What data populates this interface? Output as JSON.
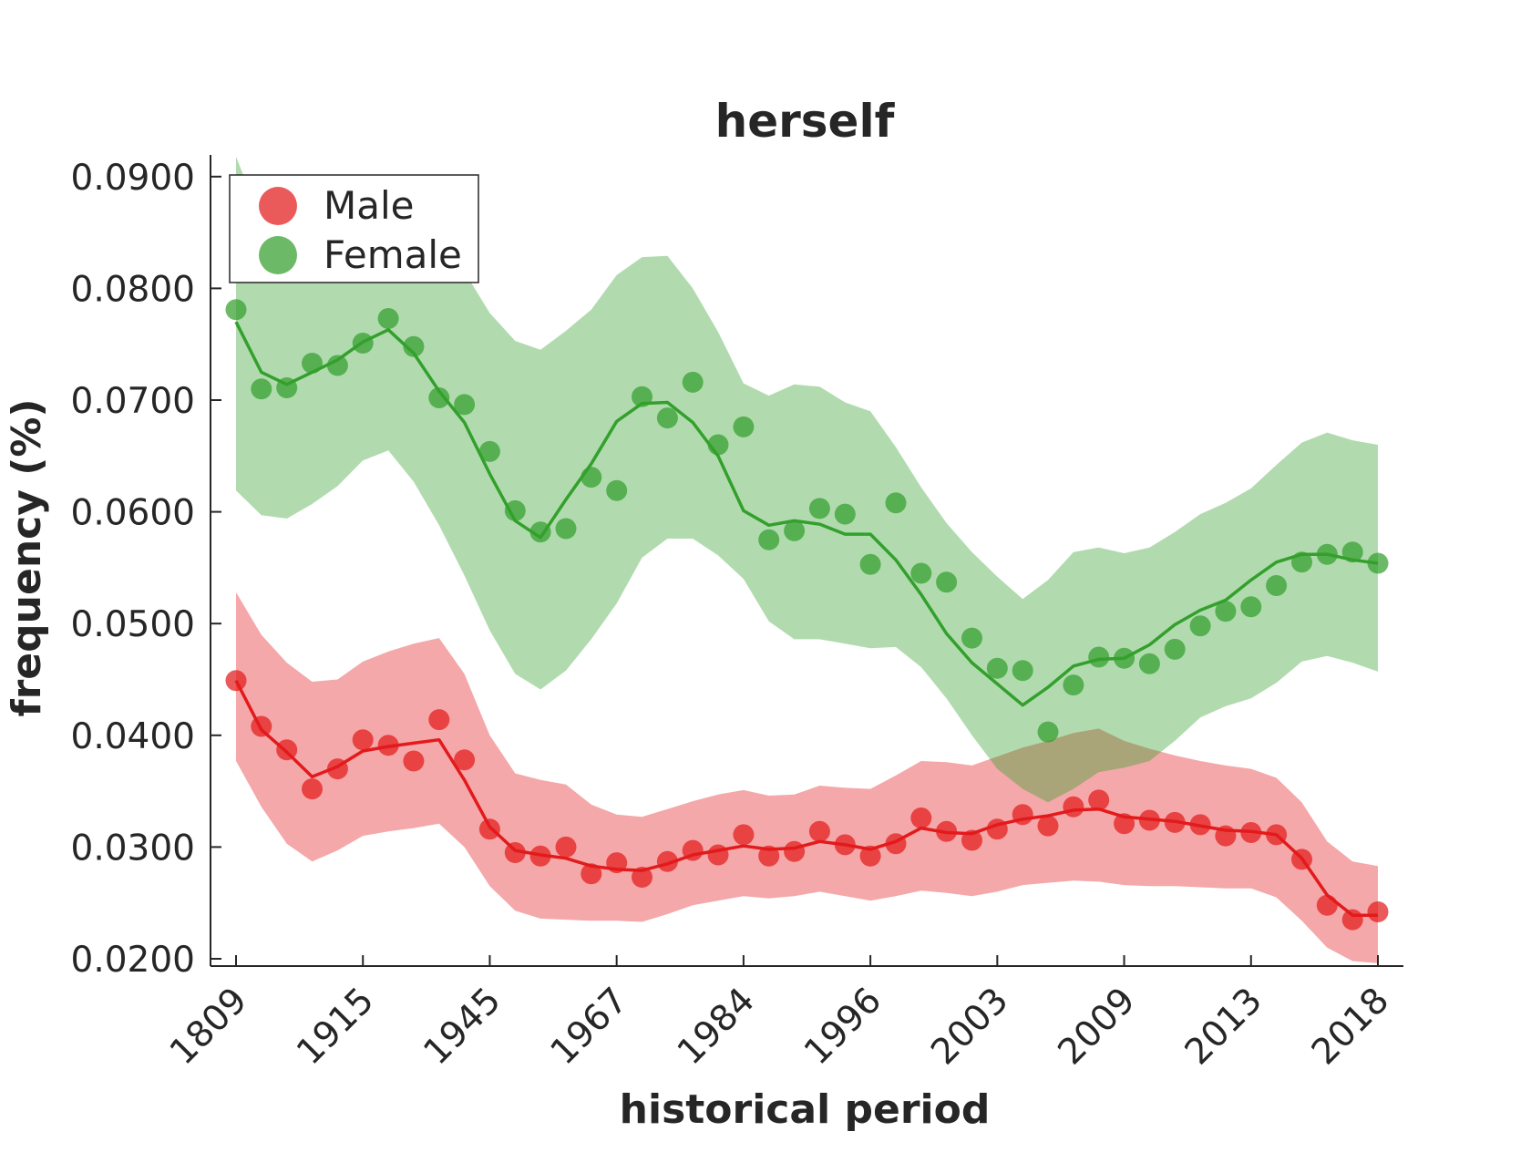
{
  "chart_data": {
    "type": "scatter",
    "title": "herself",
    "xlabel": "historical period",
    "ylabel": "frequency (%)",
    "x_tick_labels": [
      "1809",
      "1915",
      "1945",
      "1967",
      "1984",
      "1996",
      "2003",
      "2009",
      "2013",
      "2018"
    ],
    "y_ticks": [
      0.02,
      0.03,
      0.04,
      0.05,
      0.06,
      0.07,
      0.08,
      0.09
    ],
    "y_tick_labels": [
      "0.0200",
      "0.0300",
      "0.0400",
      "0.0500",
      "0.0600",
      "0.0700",
      "0.0800",
      "0.0900"
    ],
    "ylim": [
      0.0195,
      0.092
    ],
    "grid": false,
    "legend_position": "top-left",
    "series": [
      {
        "name": "Male",
        "color": "#e31a1c",
        "points": [
          0.0449,
          0.0408,
          0.0387,
          0.0352,
          0.037,
          0.0396,
          0.0391,
          0.0377,
          0.0414,
          0.0378,
          0.0316,
          0.0295,
          0.0292,
          0.03,
          0.0276,
          0.0286,
          0.0273,
          0.0287,
          0.0297,
          0.0293,
          0.0311,
          0.0292,
          0.0296,
          0.0314,
          0.0302,
          0.0292,
          0.0303,
          0.0326,
          0.0314,
          0.0306,
          0.0316,
          0.0329,
          0.0319,
          0.0336,
          0.0342,
          0.0321,
          0.0324,
          0.0322,
          0.032,
          0.031,
          0.0313,
          0.0311,
          0.0289,
          0.0248,
          0.0235,
          0.0242
        ],
        "trend": [
          0.0449,
          0.0405,
          0.0385,
          0.0363,
          0.0372,
          0.0386,
          0.039,
          0.0393,
          0.0396,
          0.036,
          0.0318,
          0.0297,
          0.0293,
          0.029,
          0.0283,
          0.028,
          0.0279,
          0.0285,
          0.0293,
          0.0297,
          0.0301,
          0.0298,
          0.0299,
          0.0305,
          0.0302,
          0.0298,
          0.0305,
          0.0317,
          0.0313,
          0.0312,
          0.032,
          0.0325,
          0.0328,
          0.0333,
          0.0334,
          0.0327,
          0.0325,
          0.0323,
          0.0319,
          0.0315,
          0.0314,
          0.0311,
          0.029,
          0.0257,
          0.0239,
          0.0239
        ],
        "band_upper": [
          0.0528,
          0.049,
          0.0465,
          0.0448,
          0.045,
          0.0466,
          0.0475,
          0.0482,
          0.0487,
          0.0455,
          0.04,
          0.0366,
          0.036,
          0.0356,
          0.0338,
          0.0329,
          0.0327,
          0.0334,
          0.0341,
          0.0347,
          0.0351,
          0.0346,
          0.0347,
          0.0355,
          0.0353,
          0.0352,
          0.0364,
          0.0377,
          0.0376,
          0.0373,
          0.0381,
          0.0389,
          0.0395,
          0.0402,
          0.0406,
          0.0395,
          0.0388,
          0.0382,
          0.0377,
          0.0373,
          0.037,
          0.0362,
          0.034,
          0.0305,
          0.0287,
          0.0283
        ],
        "band_lower": [
          0.0377,
          0.0336,
          0.0303,
          0.0287,
          0.0297,
          0.031,
          0.0314,
          0.0317,
          0.0321,
          0.03,
          0.0265,
          0.0243,
          0.0236,
          0.0235,
          0.0234,
          0.0234,
          0.0233,
          0.024,
          0.0248,
          0.0252,
          0.0256,
          0.0254,
          0.0256,
          0.026,
          0.0256,
          0.0252,
          0.0256,
          0.0261,
          0.0259,
          0.0256,
          0.026,
          0.0266,
          0.0268,
          0.027,
          0.0269,
          0.0266,
          0.0265,
          0.0265,
          0.0264,
          0.0263,
          0.0263,
          0.0255,
          0.0234,
          0.021,
          0.0198,
          0.0196
        ]
      },
      {
        "name": "Female",
        "color": "#33a02c",
        "points": [
          0.0781,
          0.071,
          0.0711,
          0.0733,
          0.0731,
          0.0751,
          0.0773,
          0.0748,
          0.0702,
          0.0696,
          0.0654,
          0.0601,
          0.0582,
          0.0585,
          0.0631,
          0.0619,
          0.0703,
          0.0684,
          0.0716,
          0.066,
          0.0676,
          0.0575,
          0.0583,
          0.0603,
          0.0598,
          0.0553,
          0.0608,
          0.0545,
          0.0537,
          0.0487,
          0.046,
          0.0458,
          0.0403,
          0.0445,
          0.047,
          0.0469,
          0.0464,
          0.0477,
          0.0498,
          0.0511,
          0.0515,
          0.0534,
          0.0555,
          0.0562,
          0.0564,
          0.0554
        ],
        "trend": [
          0.077,
          0.0725,
          0.0714,
          0.0725,
          0.0736,
          0.0752,
          0.0763,
          0.0742,
          0.0708,
          0.068,
          0.0634,
          0.0592,
          0.0577,
          0.0611,
          0.0643,
          0.0681,
          0.0697,
          0.0698,
          0.068,
          0.065,
          0.0601,
          0.0588,
          0.0592,
          0.0589,
          0.058,
          0.058,
          0.0557,
          0.0526,
          0.0491,
          0.0465,
          0.0446,
          0.0427,
          0.0443,
          0.0462,
          0.0468,
          0.0469,
          0.0481,
          0.0499,
          0.0512,
          0.0521,
          0.0539,
          0.0555,
          0.0562,
          0.0562,
          0.0557,
          0.0554
        ],
        "band_upper": [
          0.0918,
          0.086,
          0.0855,
          0.086,
          0.087,
          0.0878,
          0.0885,
          0.088,
          0.086,
          0.0815,
          0.0778,
          0.0753,
          0.0745,
          0.0762,
          0.0781,
          0.0812,
          0.0828,
          0.0829,
          0.08,
          0.0761,
          0.0715,
          0.0704,
          0.0714,
          0.0712,
          0.0698,
          0.069,
          0.0658,
          0.0622,
          0.059,
          0.0564,
          0.0542,
          0.0522,
          0.0539,
          0.0564,
          0.0568,
          0.0563,
          0.0568,
          0.0582,
          0.0598,
          0.0608,
          0.0621,
          0.0642,
          0.0662,
          0.0671,
          0.0664,
          0.066
        ],
        "band_lower": [
          0.0619,
          0.0597,
          0.0594,
          0.0607,
          0.0623,
          0.0646,
          0.0655,
          0.0627,
          0.0588,
          0.0543,
          0.0494,
          0.0455,
          0.0441,
          0.0458,
          0.0486,
          0.0518,
          0.0559,
          0.0576,
          0.0576,
          0.0561,
          0.054,
          0.0502,
          0.0486,
          0.0486,
          0.0482,
          0.0478,
          0.0479,
          0.0461,
          0.0433,
          0.04,
          0.037,
          0.0352,
          0.034,
          0.0352,
          0.0367,
          0.0371,
          0.0377,
          0.0395,
          0.0416,
          0.0426,
          0.0433,
          0.0447,
          0.0466,
          0.0471,
          0.0465,
          0.0457
        ]
      }
    ]
  }
}
